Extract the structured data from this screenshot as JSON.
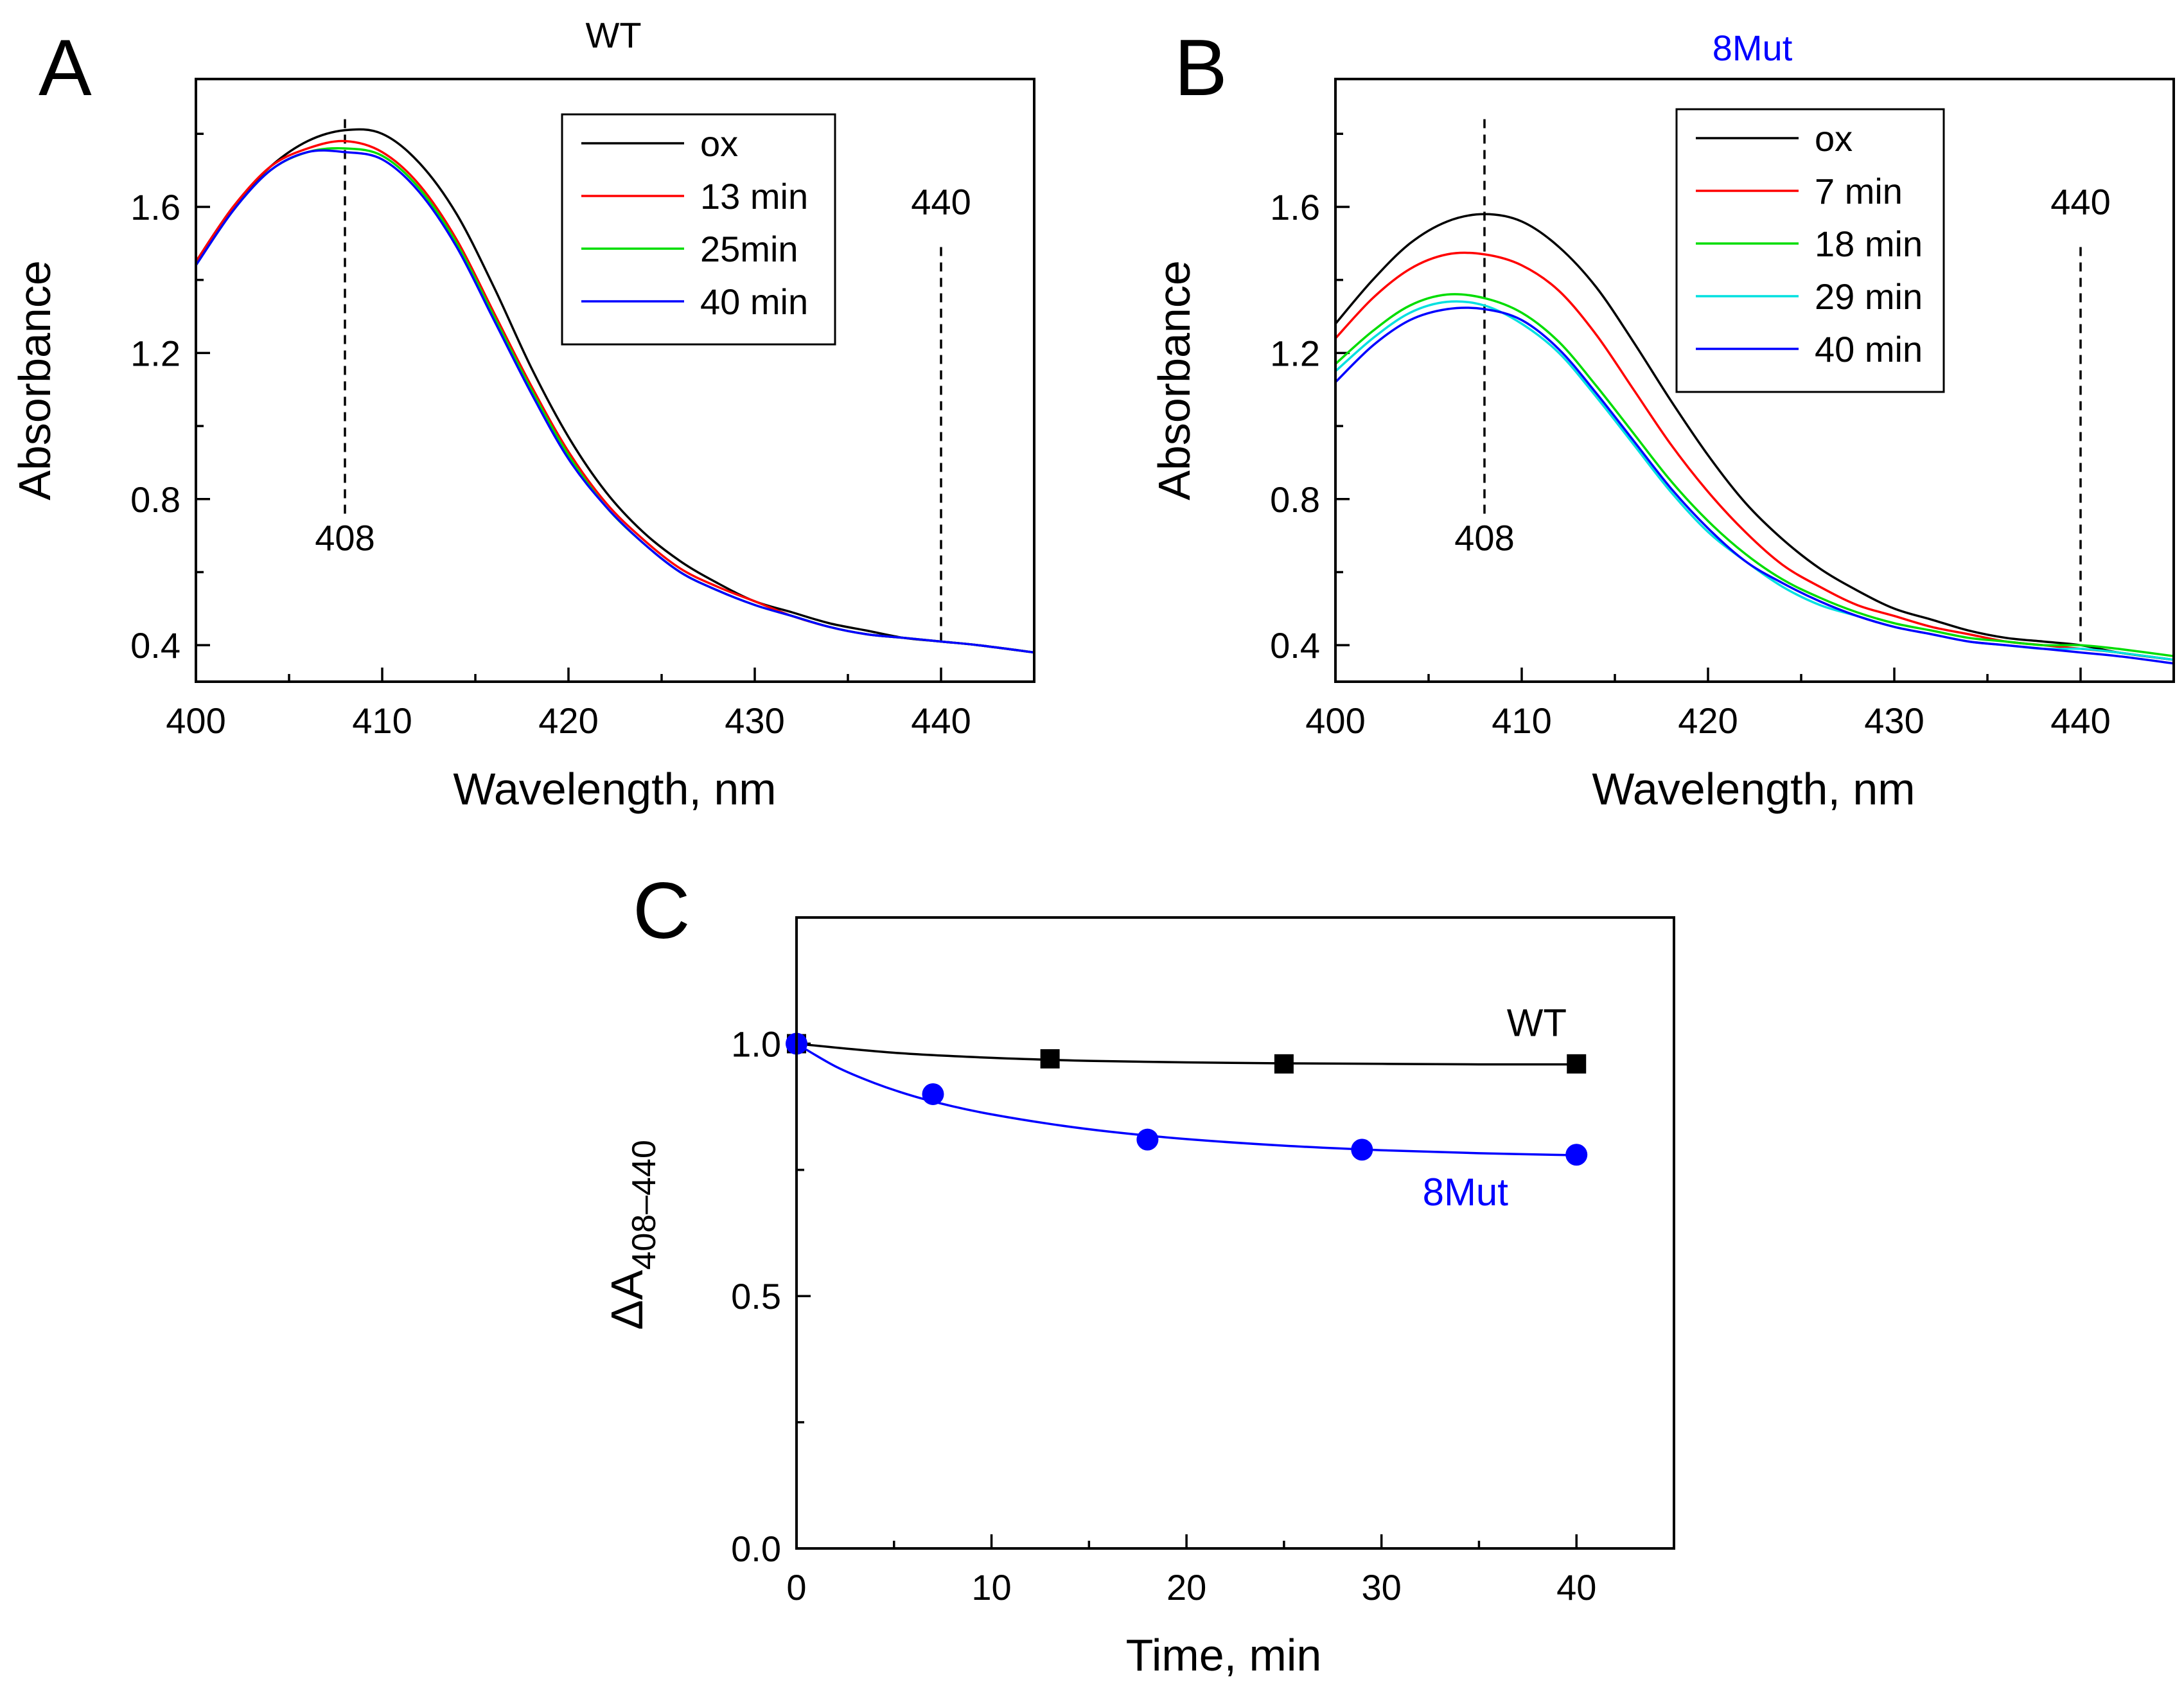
{
  "chart_data": [
    {
      "panel": "A",
      "type": "line",
      "title": "WT",
      "title_color": "#000000",
      "xlabel": "Wavelength, nm",
      "ylabel": "Absorbance",
      "xlim": [
        400,
        445
      ],
      "ylim": [
        0.3,
        1.95
      ],
      "xticks": [
        400,
        410,
        420,
        430,
        440
      ],
      "yticks": [
        0.4,
        0.8,
        1.2,
        1.6
      ],
      "xticks_minor": [
        405,
        415,
        425,
        435,
        445
      ],
      "yticks_minor": [
        0.6,
        1.0,
        1.4,
        1.8
      ],
      "x": [
        400,
        402,
        404,
        406,
        408,
        410,
        412,
        414,
        416,
        418,
        420,
        422,
        424,
        426,
        428,
        430,
        432,
        434,
        436,
        438,
        440,
        442,
        445
      ],
      "series": [
        {
          "name": "ox",
          "color": "#000000",
          "values": [
            1.45,
            1.6,
            1.71,
            1.78,
            1.81,
            1.8,
            1.72,
            1.58,
            1.38,
            1.16,
            0.97,
            0.82,
            0.71,
            0.63,
            0.57,
            0.52,
            0.49,
            0.46,
            0.44,
            0.42,
            0.41,
            0.4,
            0.38
          ]
        },
        {
          "name": "13 min",
          "color": "#ff0000",
          "values": [
            1.45,
            1.6,
            1.71,
            1.76,
            1.78,
            1.75,
            1.66,
            1.51,
            1.31,
            1.11,
            0.93,
            0.79,
            0.69,
            0.61,
            0.56,
            0.52,
            0.48,
            0.45,
            0.43,
            0.42,
            0.41,
            0.4,
            0.38
          ]
        },
        {
          "name": "25min",
          "color": "#00dd00",
          "values": [
            1.44,
            1.59,
            1.7,
            1.75,
            1.76,
            1.74,
            1.65,
            1.5,
            1.3,
            1.1,
            0.92,
            0.78,
            0.68,
            0.6,
            0.55,
            0.51,
            0.48,
            0.45,
            0.43,
            0.42,
            0.41,
            0.4,
            0.38
          ]
        },
        {
          "name": "40 min",
          "color": "#0000ff",
          "values": [
            1.44,
            1.59,
            1.7,
            1.75,
            1.75,
            1.73,
            1.64,
            1.49,
            1.29,
            1.09,
            0.91,
            0.78,
            0.68,
            0.6,
            0.55,
            0.51,
            0.48,
            0.45,
            0.43,
            0.42,
            0.41,
            0.4,
            0.38
          ]
        }
      ],
      "ref_lines": [
        {
          "x": 408,
          "y_from": 0.76,
          "y_to": 1.84,
          "label": "408",
          "label_y": 0.66
        },
        {
          "x": 440,
          "y_from": 0.41,
          "y_to": 1.49,
          "label": "440",
          "label_y": 1.58
        }
      ],
      "legend_position": "top-right"
    },
    {
      "panel": "B",
      "type": "line",
      "title": "8Mut",
      "title_color": "#0000ff",
      "xlabel": "Wavelength, nm",
      "ylabel": "Absorbance",
      "xlim": [
        400,
        445
      ],
      "ylim": [
        0.3,
        1.95
      ],
      "xticks": [
        400,
        410,
        420,
        430,
        440
      ],
      "yticks": [
        0.4,
        0.8,
        1.2,
        1.6
      ],
      "xticks_minor": [
        405,
        415,
        425,
        435,
        445
      ],
      "yticks_minor": [
        0.6,
        1.0,
        1.4,
        1.8
      ],
      "x": [
        400,
        402,
        404,
        406,
        408,
        410,
        412,
        414,
        416,
        418,
        420,
        422,
        424,
        426,
        428,
        430,
        432,
        434,
        436,
        438,
        440,
        442,
        445
      ],
      "series": [
        {
          "name": "ox",
          "color": "#000000",
          "values": [
            1.28,
            1.4,
            1.5,
            1.56,
            1.58,
            1.56,
            1.49,
            1.38,
            1.23,
            1.07,
            0.92,
            0.79,
            0.69,
            0.61,
            0.55,
            0.5,
            0.47,
            0.44,
            0.42,
            0.41,
            0.4,
            0.38,
            0.36
          ]
        },
        {
          "name": "7 min",
          "color": "#ff0000",
          "values": [
            1.24,
            1.35,
            1.43,
            1.47,
            1.47,
            1.44,
            1.37,
            1.25,
            1.1,
            0.95,
            0.82,
            0.71,
            0.62,
            0.56,
            0.51,
            0.48,
            0.45,
            0.43,
            0.41,
            0.4,
            0.39,
            0.38,
            0.36
          ]
        },
        {
          "name": "18 min",
          "color": "#00dd00",
          "values": [
            1.17,
            1.26,
            1.33,
            1.36,
            1.35,
            1.31,
            1.23,
            1.11,
            0.98,
            0.85,
            0.74,
            0.65,
            0.58,
            0.53,
            0.49,
            0.46,
            0.44,
            0.42,
            0.41,
            0.4,
            0.4,
            0.39,
            0.37
          ]
        },
        {
          "name": "29 min",
          "color": "#00e0e0",
          "values": [
            1.15,
            1.24,
            1.31,
            1.34,
            1.33,
            1.28,
            1.2,
            1.08,
            0.95,
            0.82,
            0.71,
            0.63,
            0.56,
            0.51,
            0.48,
            0.45,
            0.43,
            0.41,
            0.4,
            0.39,
            0.39,
            0.38,
            0.36
          ]
        },
        {
          "name": "40 min",
          "color": "#0000ff",
          "values": [
            1.12,
            1.22,
            1.29,
            1.32,
            1.32,
            1.29,
            1.21,
            1.09,
            0.96,
            0.83,
            0.72,
            0.63,
            0.57,
            0.52,
            0.48,
            0.45,
            0.43,
            0.41,
            0.4,
            0.39,
            0.38,
            0.37,
            0.35
          ]
        }
      ],
      "ref_lines": [
        {
          "x": 408,
          "y_from": 0.76,
          "y_to": 1.84,
          "label": "408",
          "label_y": 0.66
        },
        {
          "x": 440,
          "y_from": 0.41,
          "y_to": 1.49,
          "label": "440",
          "label_y": 1.58
        }
      ],
      "legend_position": "top-right"
    },
    {
      "panel": "C",
      "type": "scatter",
      "title": "",
      "xlabel": "Time, min",
      "ylabel_main": "ΔA",
      "ylabel_sub": "408–440",
      "xlim": [
        0,
        45
      ],
      "ylim": [
        0.0,
        1.25
      ],
      "xticks": [
        0,
        10,
        20,
        30,
        40
      ],
      "yticks": [
        0.0,
        0.5,
        1.0
      ],
      "xticks_minor": [
        5,
        15,
        25,
        35
      ],
      "yticks_minor": [
        0.25,
        0.75
      ],
      "series": [
        {
          "name": "WT",
          "color": "#000000",
          "marker": "square",
          "x": [
            0,
            13,
            25,
            40
          ],
          "values": [
            1.0,
            0.97,
            0.96,
            0.96
          ],
          "fit_x": [
            0,
            5,
            10,
            15,
            20,
            25,
            30,
            35,
            40
          ],
          "fit_values": [
            1.0,
            0.982,
            0.972,
            0.966,
            0.963,
            0.961,
            0.96,
            0.959,
            0.959
          ],
          "label_x": 39.5,
          "label_y": 1.015
        },
        {
          "name": "8Mut",
          "color": "#0000ff",
          "marker": "circle",
          "x": [
            0,
            7,
            18,
            29,
            40
          ],
          "values": [
            1.0,
            0.9,
            0.81,
            0.79,
            0.78
          ],
          "fit_x": [
            0,
            2,
            4,
            6,
            8,
            10,
            13,
            16,
            20,
            25,
            30,
            35,
            40
          ],
          "fit_values": [
            1.0,
            0.955,
            0.922,
            0.896,
            0.876,
            0.86,
            0.841,
            0.826,
            0.811,
            0.798,
            0.789,
            0.783,
            0.779
          ],
          "label_x": 36.5,
          "label_y": 0.68
        }
      ]
    }
  ]
}
